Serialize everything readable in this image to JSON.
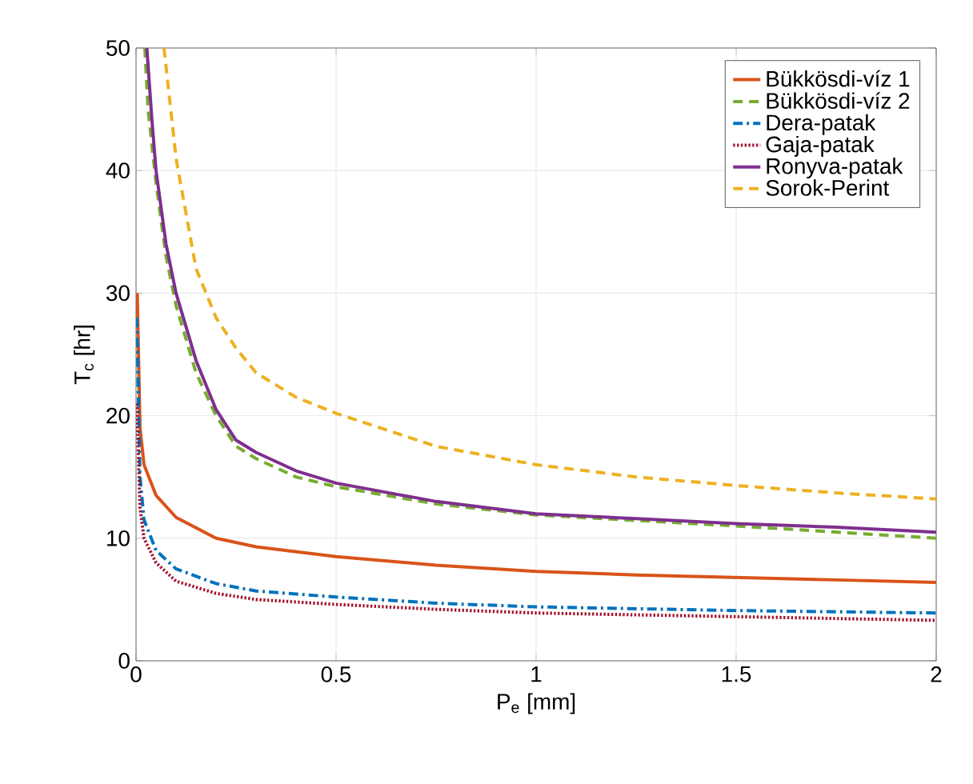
{
  "chart_data": {
    "type": "line",
    "xlabel": "P$_{e}$ [mm]",
    "ylabel": "T$_{c}$ [hr]",
    "xlim": [
      0,
      2
    ],
    "ylim": [
      0,
      50
    ],
    "xticks": [
      0,
      0.5,
      1,
      1.5,
      2
    ],
    "yticks": [
      0,
      10,
      20,
      30,
      40,
      50
    ],
    "grid": true,
    "legend": "top right",
    "series": [
      {
        "name": "Bükkösdi-víz 1",
        "color": "#d95319",
        "line_style": "solid",
        "x": [
          0.003,
          0.01,
          0.02,
          0.05,
          0.1,
          0.2,
          0.3,
          0.5,
          0.75,
          1,
          1.25,
          1.5,
          1.75,
          2
        ],
        "values": [
          30,
          19,
          16,
          13.5,
          11.7,
          10,
          9.3,
          8.5,
          7.8,
          7.3,
          7.0,
          6.8,
          6.6,
          6.4
        ]
      },
      {
        "name": "Bükkösdi-víz 2",
        "color": "#77ac30",
        "line_style": "dashed",
        "x": [
          0.022,
          0.03,
          0.05,
          0.075,
          0.1,
          0.15,
          0.2,
          0.25,
          0.3,
          0.4,
          0.5,
          0.75,
          1,
          1.5,
          2
        ],
        "values": [
          50,
          45,
          39,
          33,
          29,
          23.5,
          20,
          17.5,
          16.5,
          15,
          14.2,
          12.8,
          11.9,
          11,
          10
        ]
      },
      {
        "name": "Dera-patak",
        "color": "#0072bd",
        "line_style": "dashdot",
        "x": [
          0.002,
          0.01,
          0.02,
          0.05,
          0.1,
          0.2,
          0.3,
          0.5,
          0.75,
          1,
          1.5,
          2
        ],
        "values": [
          28,
          15,
          11.5,
          9,
          7.5,
          6.3,
          5.7,
          5.2,
          4.7,
          4.4,
          4.1,
          3.9
        ]
      },
      {
        "name": "Gaja-patak",
        "color": "#a2142f",
        "line_style": "dotted",
        "x": [
          0.002,
          0.01,
          0.02,
          0.05,
          0.1,
          0.2,
          0.3,
          0.5,
          0.75,
          1,
          1.5,
          2
        ],
        "values": [
          21,
          12.5,
          10,
          8,
          6.5,
          5.5,
          5,
          4.6,
          4.2,
          3.9,
          3.6,
          3.3
        ]
      },
      {
        "name": "Ronyva-patak",
        "color": "#7e2f8e",
        "line_style": "solid",
        "x": [
          0.027,
          0.04,
          0.05,
          0.075,
          0.1,
          0.15,
          0.2,
          0.25,
          0.3,
          0.4,
          0.5,
          0.75,
          1,
          1.25,
          1.5,
          1.75,
          2
        ],
        "values": [
          50,
          44,
          40,
          34,
          30,
          24.5,
          20.5,
          18,
          17,
          15.5,
          14.5,
          13,
          12,
          11.6,
          11.2,
          10.9,
          10.5
        ]
      },
      {
        "name": "Sorok-Perint",
        "color": "#edb120",
        "line_style": "dashed",
        "x": [
          0.07,
          0.1,
          0.15,
          0.2,
          0.25,
          0.3,
          0.4,
          0.5,
          0.75,
          1,
          1.25,
          1.5,
          1.75,
          2
        ],
        "values": [
          50,
          41,
          32,
          28,
          25.5,
          23.5,
          21.5,
          20.2,
          17.5,
          16,
          15,
          14.3,
          13.7,
          13.2
        ]
      }
    ]
  }
}
